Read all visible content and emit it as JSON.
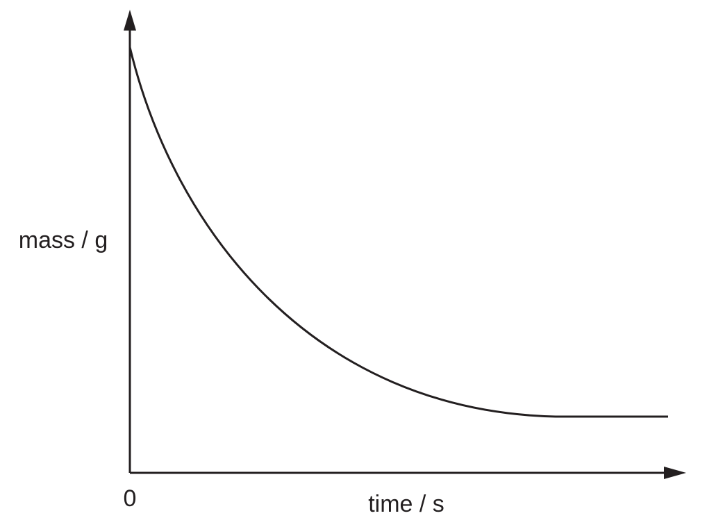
{
  "axes": {
    "y_label": "mass / g",
    "x_label": "time / s",
    "origin_label": "0"
  }
}
